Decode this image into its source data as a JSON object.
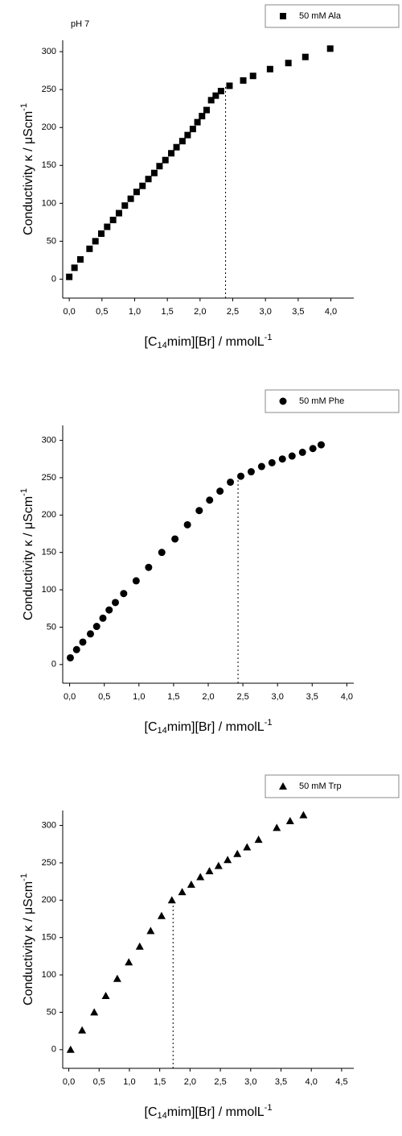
{
  "chart_data": [
    {
      "type": "scatter",
      "annotation": "pH 7",
      "x_label": [
        "[C",
        "14",
        "mim][Br] / mmolL",
        "-1"
      ],
      "y_label": [
        "Conductivity κ / μScm",
        "-1"
      ],
      "series": [
        {
          "name": "50 mM Ala",
          "color": "#000000",
          "marker": "square",
          "x": [
            0.0,
            0.08,
            0.17,
            0.31,
            0.4,
            0.49,
            0.58,
            0.67,
            0.76,
            0.85,
            0.94,
            1.03,
            1.12,
            1.21,
            1.3,
            1.38,
            1.47,
            1.56,
            1.64,
            1.73,
            1.81,
            1.89,
            1.96,
            2.03,
            2.1,
            2.17,
            2.24,
            2.32,
            2.45,
            2.66,
            2.81,
            3.07,
            3.35,
            3.61,
            3.99
          ],
          "values": [
            3,
            15,
            26,
            40,
            50,
            60,
            69,
            78,
            87,
            97,
            106,
            115,
            123,
            132,
            140,
            149,
            157,
            166,
            174,
            182,
            190,
            198,
            207,
            215,
            223,
            236,
            242,
            248,
            255,
            262,
            268,
            277,
            285,
            293,
            304
          ]
        }
      ],
      "reference_line": {
        "x": 2.39,
        "y_top": 255
      },
      "xlim": [
        -0.1,
        4.35
      ],
      "ylim": [
        -25,
        315
      ],
      "xticks": [
        {
          "value": 0,
          "label": "0,0"
        },
        {
          "value": 0.5,
          "label": "0,5"
        },
        {
          "value": 1,
          "label": "1,0"
        },
        {
          "value": 1.5,
          "label": "1,5"
        },
        {
          "value": 2,
          "label": "2,0"
        },
        {
          "value": 2.5,
          "label": "2,5"
        },
        {
          "value": 3,
          "label": "3,0"
        },
        {
          "value": 3.5,
          "label": "3,5"
        },
        {
          "value": 4,
          "label": "4,0"
        }
      ],
      "yticks": [
        0,
        50,
        100,
        150,
        200,
        250,
        300
      ],
      "grid": false
    },
    {
      "type": "scatter",
      "x_label": [
        "[C",
        "14",
        "mim][Br] / mmolL",
        "-1"
      ],
      "y_label": [
        "Conductivity κ / μScm",
        "-1"
      ],
      "series": [
        {
          "name": "50 mM Phe",
          "color": "#000000",
          "marker": "circle",
          "x": [
            0.01,
            0.1,
            0.19,
            0.3,
            0.39,
            0.48,
            0.57,
            0.66,
            0.78,
            0.96,
            1.14,
            1.33,
            1.52,
            1.7,
            1.87,
            2.02,
            2.17,
            2.32,
            2.47,
            2.62,
            2.77,
            2.92,
            3.07,
            3.21,
            3.36,
            3.51,
            3.63
          ],
          "values": [
            9,
            20,
            30,
            41,
            51,
            62,
            73,
            83,
            95,
            112,
            130,
            150,
            168,
            187,
            206,
            220,
            232,
            244,
            252,
            258,
            265,
            270,
            275,
            279,
            284,
            289,
            294
          ]
        }
      ],
      "reference_line": {
        "x": 2.43,
        "y_top": 248
      },
      "xlim": [
        -0.1,
        4.1
      ],
      "ylim": [
        -25,
        320
      ],
      "xticks": [
        {
          "value": 0,
          "label": "0,0"
        },
        {
          "value": 0.5,
          "label": "0,5"
        },
        {
          "value": 1,
          "label": "1,0"
        },
        {
          "value": 1.5,
          "label": "1,5"
        },
        {
          "value": 2,
          "label": "2,0"
        },
        {
          "value": 2.5,
          "label": "2,5"
        },
        {
          "value": 3,
          "label": "3,0"
        },
        {
          "value": 3.5,
          "label": "3,5"
        },
        {
          "value": 4,
          "label": "4,0"
        }
      ],
      "yticks": [
        0,
        50,
        100,
        150,
        200,
        250,
        300
      ],
      "grid": false
    },
    {
      "type": "scatter",
      "x_label": [
        "[C",
        "14",
        "mim][Br] / mmolL",
        "-1"
      ],
      "y_label": [
        "Conductivity κ / μScm",
        "-1"
      ],
      "series": [
        {
          "name": "50 mM Trp",
          "color": "#000000",
          "marker": "triangle",
          "x": [
            0.03,
            0.22,
            0.42,
            0.61,
            0.8,
            0.99,
            1.17,
            1.35,
            1.53,
            1.7,
            1.87,
            2.02,
            2.17,
            2.32,
            2.47,
            2.62,
            2.78,
            2.94,
            3.13,
            3.43,
            3.65,
            3.87
          ],
          "values": [
            0,
            26,
            50,
            72,
            95,
            117,
            138,
            159,
            179,
            200,
            211,
            221,
            231,
            239,
            246,
            254,
            262,
            271,
            281,
            297,
            306,
            314
          ]
        }
      ],
      "reference_line": {
        "x": 1.72,
        "y_top": 200
      },
      "xlim": [
        -0.1,
        4.7
      ],
      "ylim": [
        -25,
        320
      ],
      "xticks": [
        {
          "value": 0,
          "label": "0,0"
        },
        {
          "value": 0.5,
          "label": "0,5"
        },
        {
          "value": 1,
          "label": "1,0"
        },
        {
          "value": 1.5,
          "label": "1,5"
        },
        {
          "value": 2,
          "label": "2,0"
        },
        {
          "value": 2.5,
          "label": "2,5"
        },
        {
          "value": 3,
          "label": "3,0"
        },
        {
          "value": 3.5,
          "label": "3,5"
        },
        {
          "value": 4,
          "label": "4,0"
        },
        {
          "value": 4.5,
          "label": "4,5"
        }
      ],
      "yticks": [
        0,
        50,
        100,
        150,
        200,
        250,
        300
      ],
      "grid": false
    }
  ]
}
